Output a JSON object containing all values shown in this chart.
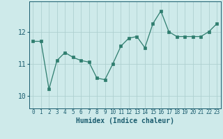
{
  "x": [
    0,
    1,
    2,
    3,
    4,
    5,
    6,
    7,
    8,
    9,
    10,
    11,
    12,
    13,
    14,
    15,
    16,
    17,
    18,
    19,
    20,
    21,
    22,
    23
  ],
  "y": [
    11.7,
    11.7,
    10.2,
    11.1,
    11.35,
    11.2,
    11.1,
    11.05,
    10.55,
    10.5,
    11.0,
    11.55,
    11.8,
    11.85,
    11.5,
    12.25,
    12.65,
    12.0,
    11.85,
    11.85,
    11.85,
    11.85,
    12.0,
    12.25
  ],
  "line_color": "#2e7d6e",
  "marker": "s",
  "marker_size": 2.5,
  "bg_color": "#ceeaea",
  "grid_color": "#aed0d0",
  "xlabel": "Humidex (Indice chaleur)",
  "xlabel_color": "#1a5c6e",
  "tick_color": "#1a5c6e",
  "yticks": [
    10,
    11,
    12
  ],
  "ylim": [
    9.6,
    12.95
  ],
  "xlim": [
    -0.5,
    23.5
  ]
}
